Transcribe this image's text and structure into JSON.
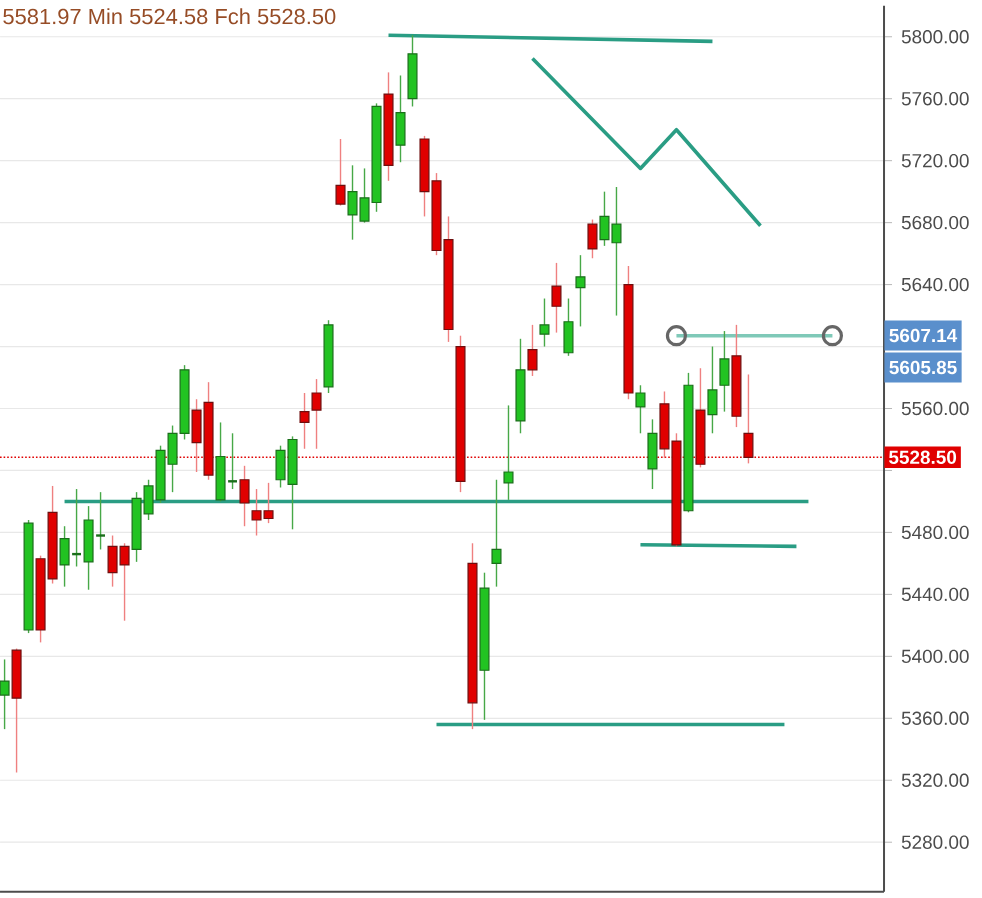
{
  "chart_data": {
    "type": "candlestick",
    "annotations": [
      "5581.97 Min 5524.58 Fch 5528.50",
      {
        "text": "5607.14",
        "y": 5607.14
      },
      "5605.85"
    ],
    "categories": [
      null,
      null,
      null,
      null,
      null,
      null,
      null,
      null,
      null,
      null,
      null,
      null,
      null,
      null,
      null,
      null,
      null,
      null,
      null,
      null,
      null,
      null,
      null,
      null,
      null,
      null,
      null,
      null,
      null,
      null,
      null,
      null,
      null,
      null,
      null,
      null,
      null,
      null,
      null,
      null,
      null,
      null,
      null,
      null,
      null,
      null,
      null,
      null,
      null,
      null,
      null,
      null,
      null,
      null,
      null,
      null,
      null,
      null,
      null,
      null,
      null,
      null,
      null,
      null,
      null,
      null,
      null,
      null,
      null,
      null,
      null,
      null,
      null,
      null
    ],
    "ohlc": [
      [
        5375,
        5398,
        5353,
        5384
      ],
      [
        5404,
        5405,
        5325,
        5373
      ],
      [
        5417,
        5488,
        5415,
        5486
      ],
      [
        5463,
        5465,
        5409,
        5417
      ],
      [
        5493,
        5510,
        5447,
        5450
      ],
      [
        5459,
        5484,
        5445,
        5476
      ],
      [
        5466,
        5508,
        5458,
        5466
      ],
      [
        5461,
        5497,
        5443,
        5488
      ],
      [
        5478,
        5506,
        5469,
        5478
      ],
      [
        5471,
        5478,
        5445,
        5454
      ],
      [
        5471,
        5473,
        5423,
        5459
      ],
      [
        5469,
        5506,
        5461,
        5502
      ],
      [
        5492,
        5514,
        5488,
        5510
      ],
      [
        5501,
        5536,
        5499,
        5533
      ],
      [
        5524,
        5549,
        5506,
        5544
      ],
      [
        5544,
        5588,
        5540,
        5585
      ],
      [
        5559,
        5566,
        5519,
        5538
      ],
      [
        5564,
        5577,
        5514,
        5517
      ],
      [
        5501,
        5551,
        5500,
        5529
      ],
      [
        5513,
        5544,
        5508,
        5513
      ],
      [
        5514,
        5523,
        5484,
        5499
      ],
      [
        5494,
        5508,
        5478,
        5488
      ],
      [
        5494,
        5512,
        5486,
        5489
      ],
      [
        5514,
        5536,
        5509,
        5533
      ],
      [
        5511,
        5542,
        5482,
        5540
      ],
      [
        5558,
        5570,
        5534,
        5551
      ],
      [
        5570,
        5579,
        5534,
        5559
      ],
      [
        5574,
        5617,
        5570,
        5614
      ],
      [
        5704,
        5734,
        5691,
        5692
      ],
      [
        5685,
        5717,
        5669,
        5700
      ],
      [
        5681,
        5715,
        5680,
        5696
      ],
      [
        5693,
        5757,
        5687,
        5755
      ],
      [
        5763,
        5777,
        5707,
        5717
      ],
      [
        5730,
        5775,
        5719,
        5751
      ],
      [
        5760,
        5801,
        5755,
        5789
      ],
      [
        5734,
        5736,
        5684,
        5700
      ],
      [
        5707,
        5712,
        5659,
        5662
      ],
      [
        5669,
        5684,
        5603,
        5611
      ],
      [
        5600,
        5607,
        5506,
        5513
      ],
      [
        5460,
        5473,
        5353,
        5370
      ],
      [
        5391,
        5454,
        5359,
        5444
      ],
      [
        5460,
        5514,
        5445,
        5469
      ],
      [
        5512,
        5562,
        5501,
        5519
      ],
      [
        5552,
        5605,
        5544,
        5585
      ],
      [
        5598,
        5614,
        5581,
        5585
      ],
      [
        5608,
        5631,
        5600,
        5614
      ],
      [
        5639,
        5654,
        5609,
        5626
      ],
      [
        5596,
        5631,
        5594,
        5616
      ],
      [
        5638,
        5659,
        5613,
        5645
      ],
      [
        5679,
        5682,
        5657,
        5663
      ],
      [
        5669,
        5700,
        5665,
        5684
      ],
      [
        5667,
        5703,
        5620,
        5679
      ],
      [
        5640,
        5652,
        5566,
        5570
      ],
      [
        5561,
        5575,
        5544,
        5570
      ],
      [
        5521,
        5553,
        5508,
        5544
      ],
      [
        5563,
        5571,
        5528,
        5534
      ],
      [
        5539,
        5544,
        5471,
        5472
      ],
      [
        5494,
        5583,
        5493,
        5575
      ],
      [
        5559,
        5586,
        5522,
        5524
      ],
      [
        5556,
        5600,
        5544,
        5572
      ],
      [
        5575,
        5610,
        5558,
        5592
      ],
      [
        5594,
        5614,
        5548,
        5555
      ],
      [
        5544,
        5581.97,
        5524.58,
        5528.5
      ],
      null,
      null,
      null,
      null,
      null,
      null,
      null,
      null,
      null,
      null,
      null
    ],
    "series": [
      {
        "type": "line",
        "color": "#2a9d84",
        "values": [
          null,
          null,
          null,
          null,
          null,
          null,
          null,
          null,
          null,
          null,
          null,
          null,
          null,
          null,
          null,
          null,
          null,
          null,
          null,
          null,
          null,
          null,
          null,
          null,
          null,
          null,
          null,
          null,
          null,
          null,
          null,
          null,
          5801,
          null,
          null,
          null,
          null,
          null,
          null,
          null,
          null,
          null,
          null,
          null,
          null,
          null,
          null,
          null,
          null,
          null,
          null,
          null,
          null,
          null,
          null,
          null,
          null,
          null,
          null,
          5797,
          null,
          null,
          null,
          null,
          null,
          null,
          null,
          null,
          null,
          null,
          null,
          null,
          null,
          null
        ]
      },
      {
        "type": "line",
        "color": "#2a9d84",
        "values": [
          null,
          null,
          null,
          null,
          null,
          null,
          null,
          null,
          null,
          null,
          null,
          null,
          null,
          null,
          null,
          null,
          null,
          null,
          null,
          null,
          null,
          null,
          null,
          null,
          null,
          null,
          null,
          null,
          null,
          null,
          null,
          null,
          null,
          null,
          null,
          null,
          null,
          null,
          null,
          null,
          null,
          null,
          null,
          null,
          5786,
          null,
          null,
          null,
          null,
          null,
          null,
          null,
          null,
          5715,
          null,
          null,
          5740,
          null,
          null,
          null,
          null,
          null,
          null,
          5678,
          null,
          null,
          null,
          null,
          null,
          null,
          null,
          null,
          null,
          null
        ]
      },
      {
        "type": "line",
        "color": "#7fc9b8",
        "marker": "circle",
        "values": [
          null,
          null,
          null,
          null,
          null,
          null,
          null,
          null,
          null,
          null,
          null,
          null,
          null,
          null,
          null,
          null,
          null,
          null,
          null,
          null,
          null,
          null,
          null,
          null,
          null,
          null,
          null,
          null,
          null,
          null,
          null,
          null,
          null,
          null,
          null,
          null,
          null,
          null,
          null,
          null,
          null,
          null,
          null,
          null,
          null,
          null,
          null,
          null,
          null,
          null,
          null,
          null,
          null,
          null,
          null,
          null,
          5607,
          null,
          null,
          null,
          null,
          null,
          null,
          null,
          null,
          null,
          null,
          null,
          null,
          5607,
          null,
          null,
          null,
          null
        ]
      },
      {
        "type": "line",
        "color": "#2a9d84",
        "values": [
          null,
          null,
          null,
          null,
          null,
          5500,
          null,
          null,
          null,
          null,
          null,
          null,
          null,
          null,
          null,
          null,
          null,
          null,
          null,
          null,
          null,
          null,
          null,
          null,
          null,
          null,
          null,
          null,
          null,
          null,
          null,
          null,
          null,
          null,
          null,
          null,
          null,
          null,
          null,
          null,
          null,
          null,
          null,
          null,
          null,
          null,
          null,
          null,
          null,
          null,
          null,
          null,
          null,
          null,
          null,
          null,
          null,
          null,
          null,
          null,
          null,
          null,
          null,
          null,
          null,
          null,
          null,
          5500,
          null,
          null,
          null,
          null,
          null,
          null
        ]
      },
      {
        "type": "line",
        "color": "#2a9d84",
        "values": [
          null,
          null,
          null,
          null,
          null,
          null,
          null,
          null,
          null,
          null,
          null,
          null,
          null,
          null,
          null,
          null,
          null,
          null,
          null,
          null,
          null,
          null,
          null,
          null,
          null,
          null,
          null,
          null,
          null,
          null,
          null,
          null,
          null,
          null,
          null,
          null,
          null,
          null,
          null,
          null,
          null,
          null,
          null,
          null,
          null,
          null,
          null,
          null,
          null,
          null,
          null,
          null,
          null,
          5472,
          null,
          null,
          null,
          null,
          null,
          null,
          null,
          null,
          null,
          null,
          null,
          null,
          5471,
          null,
          null,
          null,
          null,
          null,
          null,
          null
        ]
      },
      {
        "type": "line",
        "color": "#2a9d84",
        "values": [
          null,
          null,
          null,
          null,
          null,
          null,
          null,
          null,
          null,
          null,
          null,
          null,
          null,
          null,
          null,
          null,
          null,
          null,
          null,
          null,
          null,
          null,
          null,
          null,
          null,
          null,
          null,
          null,
          null,
          null,
          null,
          null,
          null,
          null,
          null,
          null,
          5356,
          null,
          null,
          null,
          null,
          null,
          null,
          null,
          null,
          null,
          null,
          null,
          null,
          null,
          null,
          null,
          null,
          null,
          null,
          null,
          null,
          null,
          null,
          null,
          null,
          null,
          null,
          null,
          null,
          5356,
          null,
          null,
          null,
          null,
          null,
          null,
          null,
          null
        ]
      }
    ],
    "ylim": [
      5248,
      5820
    ],
    "yticks": [
      {
        "value": 5280,
        "label": "5280.00"
      },
      {
        "value": 5320,
        "label": "5320.00"
      },
      {
        "value": 5360,
        "label": "5360.00"
      },
      {
        "value": 5400,
        "label": "5400.00"
      },
      {
        "value": 5440,
        "label": "5440.00"
      },
      {
        "value": 5480,
        "label": "5480.00"
      },
      {
        "value": 5520,
        "label": null
      },
      {
        "value": 5560,
        "label": "5560.00"
      },
      {
        "value": 5600,
        "label": null
      },
      {
        "value": 5640,
        "label": "5640.00"
      },
      {
        "value": 5680,
        "label": "5680.00"
      },
      {
        "value": 5720,
        "label": "5720.00"
      },
      {
        "value": 5760,
        "label": "5760.00"
      },
      {
        "value": 5800,
        "label": "5800.00"
      }
    ],
    "ref_lines": [
      {
        "axis": "y",
        "value": 5528.5,
        "label": "5528.50",
        "color": "#e00000",
        "line_style": "dotted"
      }
    ],
    "grid": "y",
    "marker": "none",
    "line_style": "solid",
    "tick_labels": "y"
  }
}
